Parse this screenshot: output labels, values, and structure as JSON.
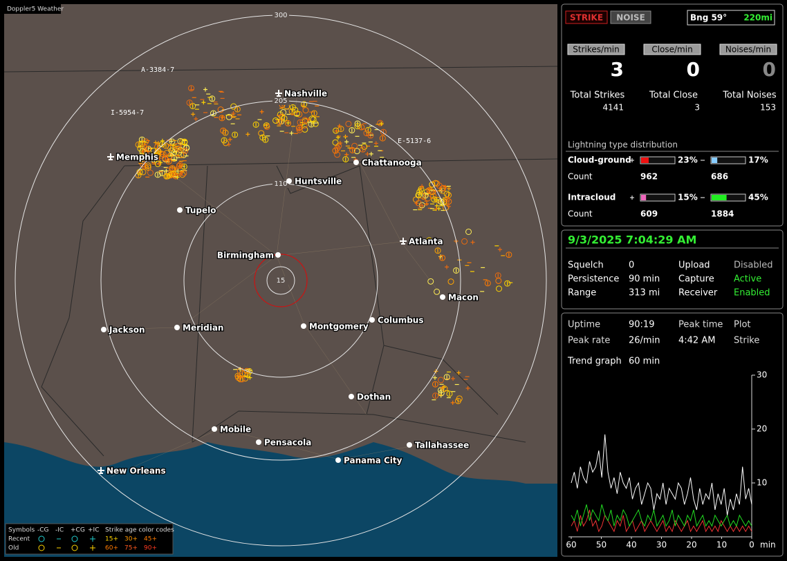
{
  "map": {
    "title": "Doppler5 Weather",
    "rings": [
      "300",
      "205",
      "110",
      "15"
    ],
    "cities": [
      "Memphis",
      "Nashville",
      "Chattanooga",
      "Huntsville",
      "Tupelo",
      "Birmingham",
      "Atlanta",
      "Macon",
      "Jackson",
      "Meridian",
      "Montgomery",
      "Columbus",
      "Dothan",
      "Mobile",
      "Pensacola",
      "Tallahassee",
      "Panama City",
      "New Orleans"
    ],
    "tracks": [
      "A-3384-7",
      "I-5954-7",
      "E-5137-6"
    ],
    "legend": {
      "header": [
        "Symbols",
        "-CG",
        "-IC",
        "+CG",
        "+IC",
        "Strike age color codes"
      ],
      "recent": {
        "label": "Recent",
        "ages": [
          "15+",
          "30+",
          "45+"
        ]
      },
      "old": {
        "label": "Old",
        "ages": [
          "60+",
          "75+",
          "90+"
        ]
      }
    }
  },
  "status": {
    "buttons": [
      "STRIKE",
      "NOISE"
    ],
    "bearing": "Bng 59°",
    "distance": "220mi",
    "rates": [
      {
        "label": "Strikes/min",
        "value": 3
      },
      {
        "label": "Close/min",
        "value": 0
      },
      {
        "label": "Noises/min",
        "value": 0
      }
    ],
    "totals": [
      {
        "label": "Total Strikes",
        "value": 4141
      },
      {
        "label": "Total Close",
        "value": 3
      },
      {
        "label": "Total Noises",
        "value": 153
      }
    ],
    "distribution": {
      "title": "Lightning type distribution",
      "count_label": "Count",
      "rows": [
        {
          "name": "Cloud-ground",
          "percent": [
            23,
            17
          ],
          "percent_labels": [
            "23%",
            "17%"
          ],
          "counts": [
            962,
            686
          ]
        },
        {
          "name": "Intracloud",
          "percent": [
            15,
            45
          ],
          "percent_labels": [
            "15%",
            "45%"
          ],
          "counts": [
            609,
            1884
          ]
        }
      ]
    }
  },
  "settings": {
    "datetime": "9/3/2025 7:04:29 AM",
    "rows": [
      [
        "Squelch",
        "0",
        "Upload",
        "Disabled"
      ],
      [
        "Persistence",
        "90 min",
        "Capture",
        "Active"
      ],
      [
        "Range",
        "313 mi",
        "Receiver",
        "Enabled"
      ]
    ]
  },
  "trend": {
    "info": [
      [
        "Uptime",
        "90:19",
        "Peak time",
        "Plot"
      ],
      [
        "Peak rate",
        "26/min",
        "4:42 AM",
        "Strike"
      ]
    ],
    "graph_label": "Trend graph",
    "graph_span": "60 min",
    "chart_data": {
      "type": "line",
      "xlim": [
        60,
        0
      ],
      "ylim": [
        0,
        30
      ],
      "yticks": [
        10,
        20,
        30
      ],
      "xticks": [
        60,
        50,
        40,
        30,
        20,
        10,
        0
      ],
      "x_unit": "min",
      "series": [
        {
          "color": "#ffffff",
          "values": [
            10,
            12,
            9,
            13,
            11,
            10,
            14,
            12,
            13,
            16,
            11,
            19,
            12,
            9,
            11,
            8,
            12,
            10,
            9,
            11,
            7,
            9,
            10,
            6,
            8,
            10,
            9,
            5,
            8,
            7,
            10,
            6,
            9,
            8,
            7,
            10,
            9,
            6,
            8,
            11,
            7,
            5,
            9,
            6,
            8,
            7,
            10,
            5,
            8,
            6,
            9,
            4,
            7,
            5,
            8,
            6,
            13,
            7,
            9,
            6
          ]
        },
        {
          "color": "#22dd22",
          "values": [
            4,
            3,
            5,
            2,
            4,
            6,
            3,
            5,
            4,
            3,
            6,
            4,
            3,
            5,
            2,
            4,
            3,
            5,
            4,
            2,
            3,
            4,
            5,
            3,
            2,
            4,
            3,
            5,
            2,
            3,
            4,
            2,
            3,
            5,
            2,
            4,
            3,
            2,
            4,
            3,
            5,
            2,
            3,
            4,
            2,
            3,
            2,
            4,
            3,
            2,
            3,
            4,
            2,
            3,
            2,
            4,
            3,
            2,
            3,
            2
          ]
        },
        {
          "color": "#ee3333",
          "values": [
            2,
            3,
            1,
            4,
            2,
            3,
            5,
            2,
            3,
            1,
            2,
            4,
            3,
            2,
            1,
            3,
            2,
            4,
            1,
            2,
            3,
            1,
            2,
            3,
            1,
            2,
            3,
            2,
            1,
            2,
            3,
            1,
            2,
            1,
            3,
            2,
            1,
            2,
            3,
            1,
            2,
            1,
            2,
            3,
            1,
            2,
            1,
            2,
            1,
            3,
            2,
            1,
            2,
            1,
            2,
            1,
            2,
            1,
            2,
            1
          ]
        }
      ]
    }
  }
}
